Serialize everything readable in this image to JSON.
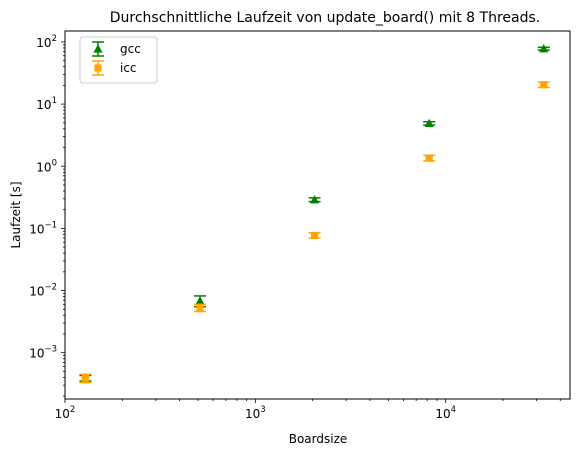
{
  "chart_data": {
    "type": "scatter",
    "title": "Durchschnittliche Laufzeit von update_board() mit 8 Threads.",
    "xlabel": "Boardsize",
    "ylabel": "Laufzeit [s]",
    "xscale": "log",
    "yscale": "log",
    "xlim": [
      100,
      45000
    ],
    "ylim": [
      0.00018,
      150
    ],
    "x_ticks": [
      {
        "value": 100,
        "base": "10",
        "exp": "2"
      },
      {
        "value": 1000,
        "base": "10",
        "exp": "3"
      },
      {
        "value": 10000,
        "base": "10",
        "exp": "4"
      }
    ],
    "y_ticks": [
      {
        "value": 0.001,
        "base": "10",
        "exp": "−3"
      },
      {
        "value": 0.01,
        "base": "10",
        "exp": "−2"
      },
      {
        "value": 0.1,
        "base": "10",
        "exp": "−1"
      },
      {
        "value": 1,
        "base": "10",
        "exp": "0"
      },
      {
        "value": 10,
        "base": "10",
        "exp": "1"
      },
      {
        "value": 100,
        "base": "10",
        "exp": "2"
      }
    ],
    "legend_position": "top-left",
    "series": [
      {
        "name": "gcc",
        "marker": "triangle",
        "color": "#008000",
        "points": [
          {
            "x": 128,
            "y": 0.00039,
            "err_low": 0.00035,
            "err_high": 0.00043
          },
          {
            "x": 512,
            "y": 0.0068,
            "err_low": 0.0055,
            "err_high": 0.0082
          },
          {
            "x": 2048,
            "y": 0.29,
            "err_low": 0.27,
            "err_high": 0.31
          },
          {
            "x": 8192,
            "y": 4.9,
            "err_low": 4.6,
            "err_high": 5.2
          },
          {
            "x": 32768,
            "y": 78,
            "err_low": 74,
            "err_high": 82
          }
        ]
      },
      {
        "name": "icc",
        "marker": "square",
        "color": "#FFA500",
        "points": [
          {
            "x": 128,
            "y": 0.00039,
            "err_low": 0.00033,
            "err_high": 0.00045
          },
          {
            "x": 512,
            "y": 0.0053,
            "err_low": 0.0046,
            "err_high": 0.006
          },
          {
            "x": 2048,
            "y": 0.077,
            "err_low": 0.07,
            "err_high": 0.085
          },
          {
            "x": 8192,
            "y": 1.35,
            "err_low": 1.22,
            "err_high": 1.5
          },
          {
            "x": 32768,
            "y": 20.5,
            "err_low": 18.5,
            "err_high": 22.5
          }
        ]
      }
    ]
  }
}
